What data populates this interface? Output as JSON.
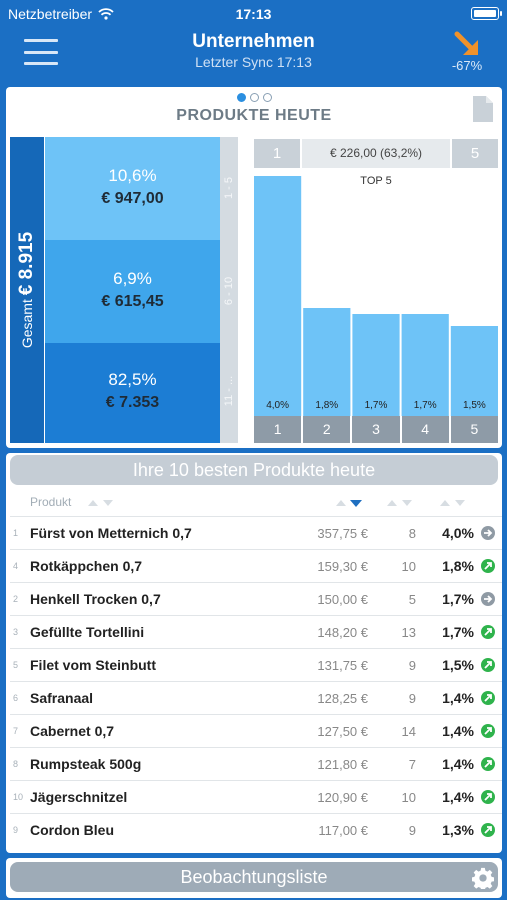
{
  "status": {
    "carrier": "Netzbetreiber",
    "time": "17:13"
  },
  "nav": {
    "title": "Unternehmen",
    "subtitle": "Letzter Sync 17:13",
    "trend": "-67%"
  },
  "products": {
    "title": "PRODUKTE HEUTE",
    "total_label": "Gesamt",
    "total_value": "€ 8.915",
    "segments": [
      {
        "percent": "10,6%",
        "value": "€ 947,00",
        "range": "1 - 5"
      },
      {
        "percent": "6,9%",
        "value": "€ 615,45",
        "range": "6 - 10"
      },
      {
        "percent": "82,5%",
        "value": "€ 7.353",
        "range": "11 - ..."
      }
    ],
    "header": {
      "left": "1",
      "center": "€ 226,00 (63,2%)",
      "right": "5"
    },
    "top5_label": "TOP 5"
  },
  "chart_data": {
    "type": "bar",
    "title": "TOP 5",
    "categories": [
      "1",
      "2",
      "3",
      "4",
      "5"
    ],
    "values": [
      4.0,
      1.8,
      1.7,
      1.7,
      1.5
    ],
    "data_labels": [
      "4,0%",
      "1,8%",
      "1,7%",
      "1,7%",
      "1,5%"
    ],
    "ylim": [
      0,
      4.0
    ],
    "colors": {
      "bar": "#6ec3f7"
    }
  },
  "top10": {
    "title": "Ihre 10 besten Produkte heute",
    "col_product": "Produkt",
    "rows": [
      {
        "rank": "1",
        "name": "Fürst von Metternich 0,7",
        "amount": "357,75 €",
        "count": "8",
        "percent": "4,0%",
        "trend": "same"
      },
      {
        "rank": "4",
        "name": "Rotkäppchen 0,7",
        "amount": "159,30 €",
        "count": "10",
        "percent": "1,8%",
        "trend": "up"
      },
      {
        "rank": "2",
        "name": "Henkell Trocken 0,7",
        "amount": "150,00 €",
        "count": "5",
        "percent": "1,7%",
        "trend": "same"
      },
      {
        "rank": "3",
        "name": "Gefüllte Tortellini",
        "amount": "148,20 €",
        "count": "13",
        "percent": "1,7%",
        "trend": "up"
      },
      {
        "rank": "5",
        "name": "Filet vom Steinbutt",
        "amount": "131,75 €",
        "count": "9",
        "percent": "1,5%",
        "trend": "up"
      },
      {
        "rank": "6",
        "name": "Safranaal",
        "amount": "128,25 €",
        "count": "9",
        "percent": "1,4%",
        "trend": "up"
      },
      {
        "rank": "7",
        "name": "Cabernet 0,7",
        "amount": "127,50 €",
        "count": "14",
        "percent": "1,4%",
        "trend": "up"
      },
      {
        "rank": "8",
        "name": "Rumpsteak 500g",
        "amount": "121,80 €",
        "count": "7",
        "percent": "1,4%",
        "trend": "up"
      },
      {
        "rank": "10",
        "name": "Jägerschnitzel",
        "amount": "120,90 €",
        "count": "10",
        "percent": "1,4%",
        "trend": "up"
      },
      {
        "rank": "9",
        "name": "Cordon Bleu",
        "amount": "117,00 €",
        "count": "9",
        "percent": "1,3%",
        "trend": "up"
      }
    ]
  },
  "watchlist": {
    "title": "Beobachtungsliste"
  }
}
